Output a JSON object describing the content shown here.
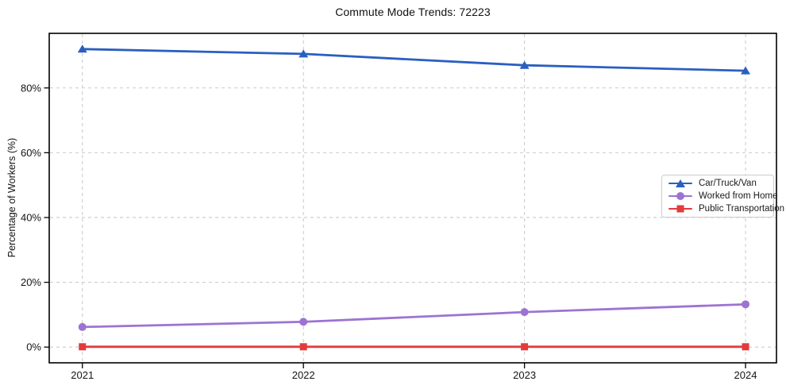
{
  "chart_data": {
    "type": "line",
    "title": "Commute Mode Trends: 72223",
    "xlabel": "",
    "ylabel": "Percentage of Workers (%)",
    "x": [
      2021,
      2022,
      2023,
      2024
    ],
    "x_tick_labels": [
      "2021",
      "2022",
      "2023",
      "2024"
    ],
    "y_ticks": [
      0,
      20,
      40,
      60,
      80
    ],
    "y_tick_labels": [
      "0%",
      "20%",
      "40%",
      "60%",
      "80%"
    ],
    "xlim": [
      2020.85,
      2024.14
    ],
    "ylim": [
      -4.85,
      96.85
    ],
    "grid": true,
    "grid_style": "dashed",
    "legend_position": "center-right",
    "series": [
      {
        "name": "Car/Truck/Van",
        "color": "#2a5fc0",
        "marker": "triangle",
        "values": [
          92.0,
          90.5,
          87.0,
          85.3
        ]
      },
      {
        "name": "Worked from Home",
        "color": "#9d73d2",
        "marker": "circle",
        "values": [
          6.2,
          7.8,
          10.8,
          13.2
        ]
      },
      {
        "name": "Public Transportation",
        "color": "#e23b3c",
        "marker": "square",
        "values": [
          0.1,
          0.1,
          0.1,
          0.1
        ]
      }
    ]
  },
  "colors": {
    "background": "#ffffff",
    "grid": "#cbcbcb",
    "spine": "#000000",
    "text": "#111111",
    "legend_border": "#cccccc",
    "legend_background": "#ffffff"
  }
}
